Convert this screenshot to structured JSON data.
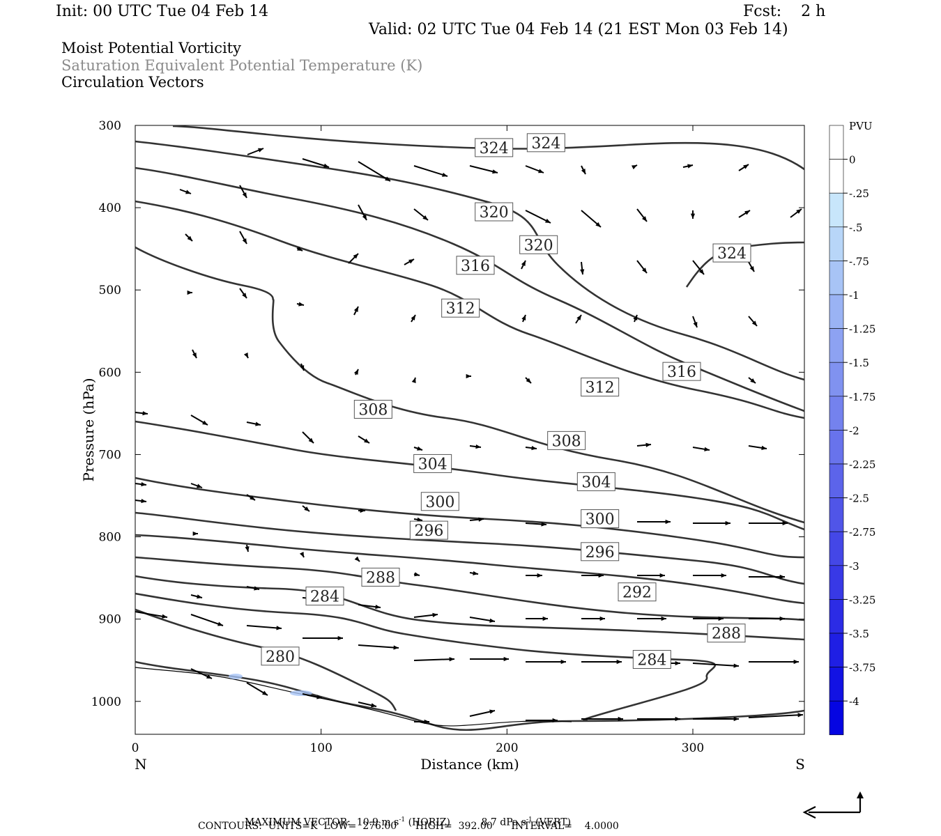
{
  "header": {
    "init": "Init: 00 UTC Tue 04 Feb 14",
    "fcst": "Fcst:    2 h",
    "valid": "Valid: 02 UTC Tue 04 Feb 14 (21 EST Mon 03 Feb 14)",
    "fields": [
      {
        "label": "Moist Potential Vorticity",
        "color": "#000000"
      },
      {
        "label": "Saturation Equivalent Potential Temperature (K)",
        "color": "#8a8a8a"
      },
      {
        "label": "Circulation Vectors",
        "color": "#000000"
      }
    ]
  },
  "footer": {
    "max_vector_label": "MAXIMUM VECTOR:",
    "horiz": "10.9 m s",
    "horiz_unit": "(HORIZ)",
    "vert": "8.7 dPa s",
    "vert_unit": "(VERT)",
    "exp": "-1",
    "contours_line": "CONTOURS:  UNITS=K  LOW=  276.00      HIGH=  392.00      INTERVAL=    4.0000"
  },
  "chart_data": {
    "type": "contour",
    "xlabel": "Distance (km)",
    "ylabel": "Pressure (hPa)",
    "xlim": [
      0,
      360
    ],
    "ylim": [
      1040,
      300
    ],
    "x_ticks": [
      0,
      100,
      200,
      300
    ],
    "y_ticks": [
      300,
      400,
      500,
      600,
      700,
      800,
      900,
      1000
    ],
    "x_end_labels": {
      "left": "N",
      "right": "S"
    },
    "colorbar": {
      "unit": "PVU",
      "labels": [
        "0",
        "-.25",
        "-.5",
        "-.75",
        "-1",
        "-1.25",
        "-1.5",
        "-1.75",
        "-2",
        "-2.25",
        "-2.5",
        "-2.75",
        "-3",
        "-3.25",
        "-3.5",
        "-3.75",
        "-4"
      ],
      "colors": [
        "#ffffff",
        "#ffffff",
        "#c8e6fb",
        "#b8d6f8",
        "#a8c4f6",
        "#9ab3f4",
        "#8da2f2",
        "#8092f0",
        "#7482ee",
        "#6873ec",
        "#5c64ea",
        "#5055e8",
        "#4447e7",
        "#3839e6",
        "#2c2ce5",
        "#1f1fe4",
        "#1212e3",
        "#0505e2"
      ]
    },
    "contour_labels": [
      {
        "text": "324",
        "x": 193,
        "p": 327
      },
      {
        "text": "324",
        "x": 221,
        "p": 321
      },
      {
        "text": "320",
        "x": 193,
        "p": 405
      },
      {
        "text": "320",
        "x": 217,
        "p": 445
      },
      {
        "text": "324",
        "x": 321,
        "p": 455
      },
      {
        "text": "316",
        "x": 183,
        "p": 470
      },
      {
        "text": "312",
        "x": 175,
        "p": 522
      },
      {
        "text": "316",
        "x": 294,
        "p": 599
      },
      {
        "text": "312",
        "x": 250,
        "p": 618
      },
      {
        "text": "308",
        "x": 128,
        "p": 645
      },
      {
        "text": "308",
        "x": 232,
        "p": 683
      },
      {
        "text": "304",
        "x": 160,
        "p": 711
      },
      {
        "text": "304",
        "x": 248,
        "p": 733
      },
      {
        "text": "300",
        "x": 164,
        "p": 757
      },
      {
        "text": "300",
        "x": 250,
        "p": 778
      },
      {
        "text": "296",
        "x": 158,
        "p": 792
      },
      {
        "text": "296",
        "x": 250,
        "p": 818
      },
      {
        "text": "288",
        "x": 132,
        "p": 849
      },
      {
        "text": "292",
        "x": 270,
        "p": 867
      },
      {
        "text": "284",
        "x": 102,
        "p": 872
      },
      {
        "text": "288",
        "x": 318,
        "p": 917
      },
      {
        "text": "280",
        "x": 78,
        "p": 945
      },
      {
        "text": "284",
        "x": 278,
        "p": 949
      }
    ]
  },
  "reference_arrow_name": "reference-vector-arrow"
}
